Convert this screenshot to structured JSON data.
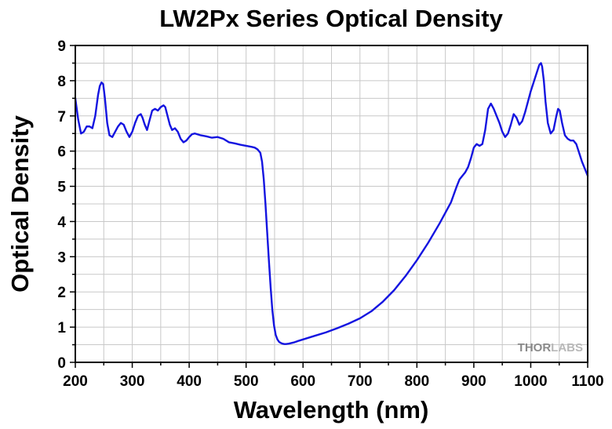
{
  "chart_data": {
    "type": "line",
    "title": "LW2Px Series Optical Density",
    "xlabel": "Wavelength (nm)",
    "ylabel": "Optical Density",
    "xlim": [
      200,
      1100
    ],
    "ylim": [
      0,
      9
    ],
    "xticks": [
      200,
      300,
      400,
      500,
      600,
      700,
      800,
      900,
      1000,
      1100
    ],
    "yticks": [
      0,
      1,
      2,
      3,
      4,
      5,
      6,
      7,
      8,
      9
    ],
    "grid": true,
    "legend": "none",
    "line_color": "#1414e0",
    "grid_color": "#c8c8c8",
    "logo": {
      "text": "THORLABS",
      "part1": "THOR",
      "part2": "LABS",
      "color1": "#8a8a8a",
      "color2": "#b8b8b8"
    },
    "series": [
      {
        "x": [
          200,
          205,
          210,
          215,
          220,
          225,
          230,
          235,
          240,
          243,
          246,
          249,
          252,
          256,
          260,
          265,
          270,
          275,
          280,
          285,
          290,
          295,
          300,
          305,
          310,
          315,
          318,
          322,
          326,
          330,
          335,
          340,
          345,
          350,
          355,
          358,
          362,
          366,
          370,
          375,
          380,
          385,
          390,
          395,
          400,
          405,
          410,
          420,
          430,
          440,
          450,
          460,
          470,
          480,
          490,
          500,
          510,
          515,
          520,
          525,
          528,
          531,
          534,
          537,
          540,
          543,
          546,
          549,
          552,
          555,
          558,
          561,
          564,
          567,
          570,
          575,
          580,
          585,
          590,
          600,
          620,
          640,
          660,
          680,
          700,
          720,
          740,
          760,
          780,
          800,
          820,
          840,
          860,
          870,
          875,
          880,
          885,
          890,
          895,
          900,
          905,
          910,
          915,
          920,
          925,
          930,
          935,
          940,
          945,
          950,
          955,
          960,
          965,
          970,
          975,
          980,
          985,
          990,
          995,
          1000,
          1005,
          1010,
          1015,
          1018,
          1020,
          1023,
          1026,
          1030,
          1035,
          1040,
          1045,
          1048,
          1051,
          1055,
          1060,
          1065,
          1070,
          1075,
          1080,
          1085,
          1090,
          1095,
          1100
        ],
        "y": [
          7.5,
          6.9,
          6.5,
          6.55,
          6.7,
          6.7,
          6.65,
          7.0,
          7.6,
          7.85,
          7.95,
          7.9,
          7.5,
          6.8,
          6.45,
          6.4,
          6.55,
          6.7,
          6.8,
          6.75,
          6.55,
          6.4,
          6.55,
          6.8,
          7.0,
          7.05,
          6.95,
          6.75,
          6.6,
          6.85,
          7.15,
          7.2,
          7.15,
          7.25,
          7.3,
          7.25,
          7.0,
          6.75,
          6.6,
          6.65,
          6.55,
          6.35,
          6.25,
          6.3,
          6.4,
          6.48,
          6.5,
          6.45,
          6.42,
          6.38,
          6.4,
          6.35,
          6.25,
          6.22,
          6.18,
          6.15,
          6.12,
          6.1,
          6.05,
          5.95,
          5.7,
          5.2,
          4.5,
          3.7,
          2.9,
          2.15,
          1.5,
          1.05,
          0.78,
          0.65,
          0.58,
          0.55,
          0.53,
          0.52,
          0.52,
          0.53,
          0.55,
          0.57,
          0.6,
          0.65,
          0.75,
          0.85,
          0.97,
          1.1,
          1.25,
          1.45,
          1.72,
          2.05,
          2.45,
          2.9,
          3.4,
          3.95,
          4.55,
          5.0,
          5.2,
          5.3,
          5.4,
          5.55,
          5.8,
          6.1,
          6.2,
          6.15,
          6.2,
          6.6,
          7.2,
          7.35,
          7.2,
          7.0,
          6.8,
          6.55,
          6.4,
          6.5,
          6.75,
          7.05,
          6.95,
          6.75,
          6.85,
          7.1,
          7.4,
          7.7,
          7.95,
          8.2,
          8.45,
          8.5,
          8.4,
          8.0,
          7.4,
          6.8,
          6.5,
          6.6,
          7.0,
          7.2,
          7.15,
          6.8,
          6.45,
          6.35,
          6.3,
          6.3,
          6.2,
          5.95,
          5.7,
          5.5,
          5.3
        ]
      }
    ]
  }
}
